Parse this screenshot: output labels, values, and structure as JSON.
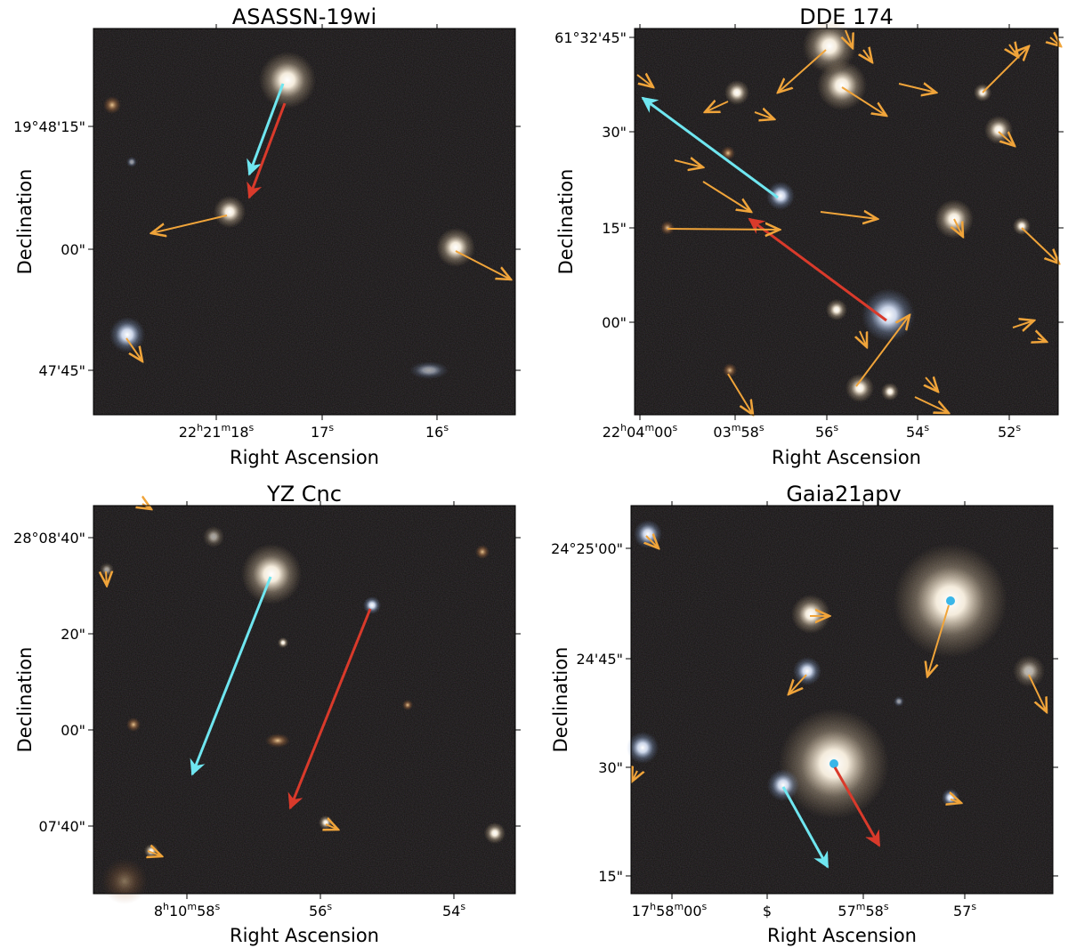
{
  "colors": {
    "sky": "#141210",
    "cyan_arrow": "#6fe6f0",
    "red_arrow": "#d93a2b",
    "orange_arrow": "#f0a43a",
    "star_core": "#ffffff",
    "star_warm": "#f3d9a8",
    "star_cool": "#bcd4f5"
  },
  "panels": [
    {
      "title": "ASASSN-19wi",
      "xlabel": "Right Ascension",
      "ylabel": "Declination",
      "ra_ticks": [
        {
          "h": "22",
          "hs": "h",
          "m": "21",
          "ms": "m",
          "s": "18",
          "ss": "s"
        },
        {
          "s": "17",
          "ss": "s"
        },
        {
          "s": "16",
          "ss": "s"
        }
      ],
      "dec_ticks": [
        "19°48'15\"",
        "00\"",
        "47'45\""
      ]
    },
    {
      "title": "DDE 174",
      "xlabel": "Right Ascension",
      "ylabel": "Declination",
      "ra_ticks": [
        {
          "h": "22",
          "hs": "h",
          "m": "04",
          "ms": "m",
          "s": "00",
          "ss": "s"
        },
        {
          "m": "03",
          "ms": "m",
          "s": "58",
          "ss": "s"
        },
        {
          "s": "56",
          "ss": "s"
        },
        {
          "s": "54",
          "ss": "s"
        },
        {
          "s": "52",
          "ss": "s"
        }
      ],
      "dec_ticks": [
        "61°32'45\"",
        "30\"",
        "15\"",
        "00\""
      ]
    },
    {
      "title": "YZ Cnc",
      "xlabel": "Right Ascension",
      "ylabel": "Declination",
      "ra_ticks": [
        {
          "h": "8",
          "hs": "h",
          "m": "10",
          "ms": "m",
          "s": "58",
          "ss": "s"
        },
        {
          "s": "56",
          "ss": "s"
        },
        {
          "s": "54",
          "ss": "s"
        }
      ],
      "dec_ticks": [
        "28°08'40\"",
        "20\"",
        "00\"",
        "07'40\""
      ]
    },
    {
      "title": "Gaia21apv",
      "xlabel": "Right Ascension",
      "ylabel": "Declination",
      "ra_ticks": [
        {
          "h": "17",
          "hs": "h",
          "m": "58",
          "ms": "m",
          "s": "00",
          "ss": "s"
        },
        {
          "plain": "$"
        },
        {
          "m": "57",
          "ms": "m",
          "s": "58",
          "ss": "s"
        },
        {
          "s": "57",
          "ss": "s"
        }
      ],
      "dec_ticks": [
        "24°25'00\"",
        "24'45\"",
        "30\"",
        "15\""
      ]
    }
  ]
}
